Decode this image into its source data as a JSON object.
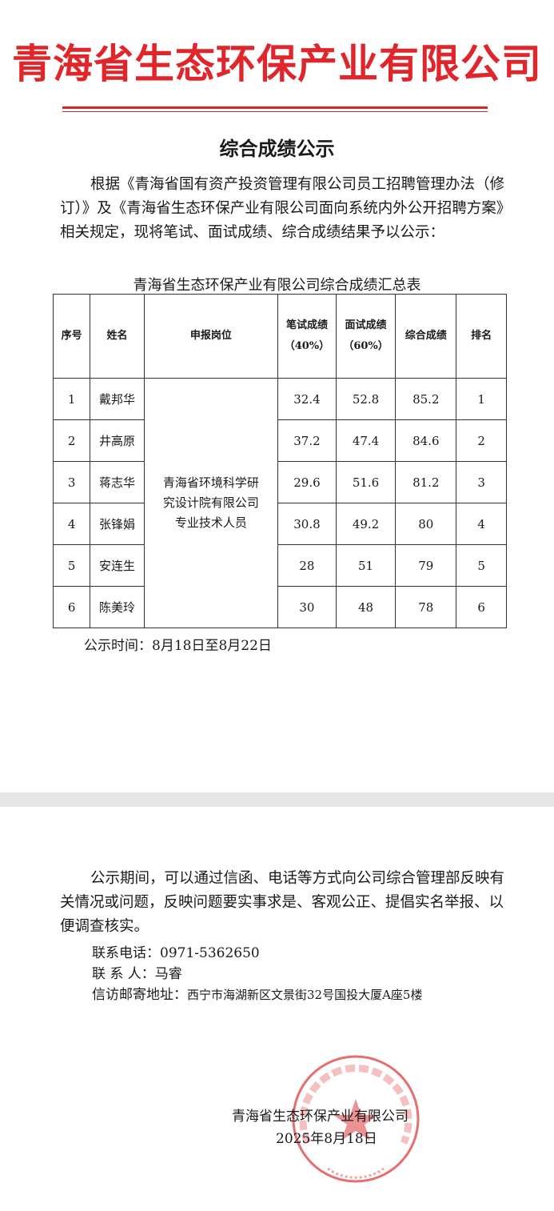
{
  "header": {
    "company": "青海省生态环保产业有限公司",
    "accent": "#e0262a"
  },
  "title": "综合成绩公示",
  "intro": "根据《青海省国有资产投资管理有限公司员工招聘管理办法（修订）》及《青海省生态环保产业有限公司面向系统内外公开招聘方案》相关规定，现将笔试、面试成绩、综合成绩结果予以公示：",
  "table": {
    "caption": "青海省生态环保产业有限公司综合成绩汇总表",
    "headers": [
      "序号",
      "姓名",
      "申报岗位",
      "笔试成绩（40%）",
      "面试成绩（60%）",
      "综合成绩",
      "排名"
    ],
    "position": "青海省环境科学研究设计院有限公司专业技术人员",
    "rows": [
      [
        "1",
        "戴邦华",
        "32.4",
        "52.8",
        "85.2",
        "1"
      ],
      [
        "2",
        "井高原",
        "37.2",
        "47.4",
        "84.6",
        "2"
      ],
      [
        "3",
        "蒋志华",
        "29.6",
        "51.6",
        "81.2",
        "3"
      ],
      [
        "4",
        "张锋娟",
        "30.8",
        "49.2",
        "80",
        "4"
      ],
      [
        "5",
        "安连生",
        "28",
        "51",
        "79",
        "5"
      ],
      [
        "6",
        "陈美玲",
        "30",
        "48",
        "78",
        "6"
      ]
    ]
  },
  "period": "公示时间：8月18日至8月22日",
  "notice": "公示期间，可以通过信函、电话等方式向公司综合管理部反映有关情况或问题，反映问题要实事求是、客观公正、提倡实名举报、以便调查核实。",
  "contact": {
    "phone": "联系电话：0971-5362650",
    "person": "联 系 人：马睿",
    "address_label": "信访邮寄地址：",
    "address": "西宁市海湖新区文景街32号国投大厦A座5楼"
  },
  "signature": {
    "company": "青海省生态环保产业有限公司",
    "date": "2025年8月18日"
  },
  "stamp": {
    "text": "青海省生态环保产业有限公司",
    "code": "6301012724986",
    "color": "#e04a4a"
  }
}
